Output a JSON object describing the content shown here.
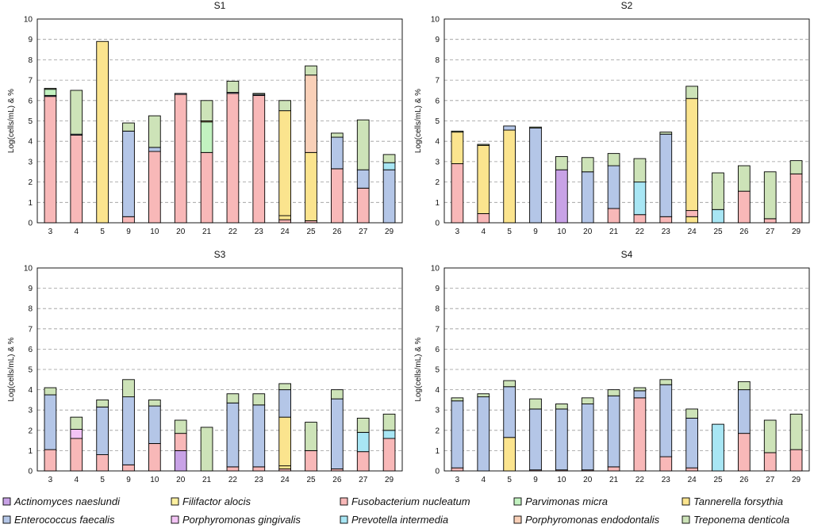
{
  "figure": {
    "legend": [
      {
        "key": "an",
        "name": "Actinomyces naeslundi",
        "color": "#c8a2e6"
      },
      {
        "key": "fa",
        "name": "Filifactor alocis",
        "color": "#fdf0a0"
      },
      {
        "key": "fn",
        "name": "Fusobacterium nucleatum",
        "color": "#f8b8b8"
      },
      {
        "key": "pm",
        "name": "Parvimonas micra",
        "color": "#c2f2c0"
      },
      {
        "key": "tf",
        "name": "Tannerella forsythia",
        "color": "#fbe48e"
      },
      {
        "key": "ef",
        "name": "Enterococcus faecalis",
        "color": "#b4c6e7"
      },
      {
        "key": "pg",
        "name": "Porphyromonas gingivalis",
        "color": "#f3c4f5"
      },
      {
        "key": "pi",
        "name": "Prevotella intermedia",
        "color": "#a8e6f4"
      },
      {
        "key": "pe",
        "name": "Porphyromonas endodontalis",
        "color": "#f9d0b8"
      },
      {
        "key": "td",
        "name": "Treponema denticola",
        "color": "#cde3b8"
      }
    ]
  },
  "chart_data": [
    {
      "type": "bar",
      "stacked": true,
      "title": "S1",
      "xlabel": "",
      "ylabel": "Log(cells/mL) & %",
      "ylim": [
        0,
        10
      ],
      "yticks": [
        "0",
        "1",
        "2",
        "3",
        "4",
        "5",
        "6",
        "7",
        "8",
        "9",
        "10"
      ],
      "categories": [
        "3",
        "4",
        "5",
        "9",
        "10",
        "20",
        "21",
        "22",
        "23",
        "24",
        "25",
        "26",
        "27",
        "29"
      ],
      "stacks": [
        [
          {
            "s": "fn",
            "v": 6.2
          },
          {
            "s": "ef",
            "v": 0.05
          },
          {
            "s": "pm",
            "v": 0.3
          },
          {
            "s": "td",
            "v": 0.05
          }
        ],
        [
          {
            "s": "fn",
            "v": 4.3
          },
          {
            "s": "ef",
            "v": 0.05
          },
          {
            "s": "td",
            "v": 2.15
          }
        ],
        [
          {
            "s": "tf",
            "v": 8.9
          }
        ],
        [
          {
            "s": "fn",
            "v": 0.3
          },
          {
            "s": "ef",
            "v": 4.2
          },
          {
            "s": "td",
            "v": 0.4
          }
        ],
        [
          {
            "s": "fn",
            "v": 3.5
          },
          {
            "s": "ef",
            "v": 0.2
          },
          {
            "s": "td",
            "v": 1.55
          }
        ],
        [
          {
            "s": "fn",
            "v": 6.3
          },
          {
            "s": "ef",
            "v": 0.05
          }
        ],
        [
          {
            "s": "fn",
            "v": 3.45
          },
          {
            "s": "pm",
            "v": 1.5
          },
          {
            "s": "tf",
            "v": 0.05
          },
          {
            "s": "td",
            "v": 1.0
          }
        ],
        [
          {
            "s": "fn",
            "v": 6.35
          },
          {
            "s": "ef",
            "v": 0.05
          },
          {
            "s": "td",
            "v": 0.55
          }
        ],
        [
          {
            "s": "fn",
            "v": 6.25
          },
          {
            "s": "ef",
            "v": 0.05
          },
          {
            "s": "td",
            "v": 0.05
          }
        ],
        [
          {
            "s": "fn",
            "v": 0.15
          },
          {
            "s": "tf",
            "v": 0.2
          },
          {
            "s": "tf",
            "v": 5.15
          },
          {
            "s": "td",
            "v": 0.5
          }
        ],
        [
          {
            "s": "fn",
            "v": 0.1
          },
          {
            "s": "tf",
            "v": 3.35
          },
          {
            "s": "pe",
            "v": 3.8
          },
          {
            "s": "td",
            "v": 0.45
          }
        ],
        [
          {
            "s": "fn",
            "v": 2.65
          },
          {
            "s": "ef",
            "v": 1.55
          },
          {
            "s": "td",
            "v": 0.2
          }
        ],
        [
          {
            "s": "fn",
            "v": 1.7
          },
          {
            "s": "ef",
            "v": 0.9
          },
          {
            "s": "td",
            "v": 2.45
          }
        ],
        [
          {
            "s": "ef",
            "v": 2.6
          },
          {
            "s": "pi",
            "v": 0.35
          },
          {
            "s": "td",
            "v": 0.4
          }
        ]
      ]
    },
    {
      "type": "bar",
      "stacked": true,
      "title": "S2",
      "xlabel": "",
      "ylabel": "Log(cells/mL) & %",
      "ylim": [
        0,
        10
      ],
      "yticks": [
        "0",
        "1",
        "2",
        "3",
        "4",
        "5",
        "6",
        "7",
        "8",
        "9",
        "10"
      ],
      "categories": [
        "3",
        "4",
        "5",
        "9",
        "10",
        "20",
        "21",
        "22",
        "23",
        "24",
        "25",
        "26",
        "27",
        "29"
      ],
      "stacks": [
        [
          {
            "s": "fn",
            "v": 2.9
          },
          {
            "s": "tf",
            "v": 1.55
          },
          {
            "s": "td",
            "v": 0.05
          }
        ],
        [
          {
            "s": "fn",
            "v": 0.45
          },
          {
            "s": "tf",
            "v": 3.35
          },
          {
            "s": "td",
            "v": 0.05
          }
        ],
        [
          {
            "s": "tf",
            "v": 4.55
          },
          {
            "s": "ef",
            "v": 0.2
          }
        ],
        [
          {
            "s": "ef",
            "v": 4.65
          },
          {
            "s": "td",
            "v": 0.05
          }
        ],
        [
          {
            "s": "an",
            "v": 2.6
          },
          {
            "s": "td",
            "v": 0.65
          }
        ],
        [
          {
            "s": "ef",
            "v": 2.5
          },
          {
            "s": "td",
            "v": 0.7
          }
        ],
        [
          {
            "s": "fn",
            "v": 0.7
          },
          {
            "s": "ef",
            "v": 2.1
          },
          {
            "s": "td",
            "v": 0.6
          }
        ],
        [
          {
            "s": "fn",
            "v": 0.4
          },
          {
            "s": "pi",
            "v": 1.6
          },
          {
            "s": "td",
            "v": 1.15
          }
        ],
        [
          {
            "s": "fn",
            "v": 0.3
          },
          {
            "s": "ef",
            "v": 4.05
          },
          {
            "s": "td",
            "v": 0.1
          }
        ],
        [
          {
            "s": "tf",
            "v": 0.3
          },
          {
            "s": "fn",
            "v": 0.3
          },
          {
            "s": "tf",
            "v": 5.5
          },
          {
            "s": "td",
            "v": 0.6
          }
        ],
        [
          {
            "s": "pi",
            "v": 0.65
          },
          {
            "s": "td",
            "v": 1.8
          }
        ],
        [
          {
            "s": "fn",
            "v": 1.55
          },
          {
            "s": "td",
            "v": 1.25
          }
        ],
        [
          {
            "s": "fn",
            "v": 0.2
          },
          {
            "s": "td",
            "v": 2.3
          }
        ],
        [
          {
            "s": "fn",
            "v": 2.4
          },
          {
            "s": "td",
            "v": 0.65
          }
        ]
      ]
    },
    {
      "type": "bar",
      "stacked": true,
      "title": "S3",
      "xlabel": "",
      "ylabel": "Log(cells/mL) & %",
      "ylim": [
        0,
        10
      ],
      "yticks": [
        "0",
        "1",
        "2",
        "3",
        "4",
        "5",
        "6",
        "7",
        "8",
        "9",
        "10"
      ],
      "categories": [
        "3",
        "4",
        "5",
        "9",
        "10",
        "20",
        "21",
        "22",
        "23",
        "24",
        "25",
        "26",
        "27",
        "29"
      ],
      "stacks": [
        [
          {
            "s": "fn",
            "v": 1.05
          },
          {
            "s": "ef",
            "v": 2.7
          },
          {
            "s": "td",
            "v": 0.35
          }
        ],
        [
          {
            "s": "fn",
            "v": 1.6
          },
          {
            "s": "pg",
            "v": 0.45
          },
          {
            "s": "td",
            "v": 0.6
          }
        ],
        [
          {
            "s": "fn",
            "v": 0.8
          },
          {
            "s": "ef",
            "v": 2.35
          },
          {
            "s": "td",
            "v": 0.35
          }
        ],
        [
          {
            "s": "fn",
            "v": 0.3
          },
          {
            "s": "ef",
            "v": 3.35
          },
          {
            "s": "td",
            "v": 0.85
          }
        ],
        [
          {
            "s": "fn",
            "v": 1.35
          },
          {
            "s": "ef",
            "v": 1.85
          },
          {
            "s": "td",
            "v": 0.3
          }
        ],
        [
          {
            "s": "an",
            "v": 1.0
          },
          {
            "s": "fn",
            "v": 0.85
          },
          {
            "s": "td",
            "v": 0.65
          }
        ],
        [
          {
            "s": "td",
            "v": 2.15
          }
        ],
        [
          {
            "s": "fn",
            "v": 0.2
          },
          {
            "s": "ef",
            "v": 3.15
          },
          {
            "s": "td",
            "v": 0.45
          }
        ],
        [
          {
            "s": "fn",
            "v": 0.2
          },
          {
            "s": "ef",
            "v": 3.05
          },
          {
            "s": "td",
            "v": 0.55
          }
        ],
        [
          {
            "s": "fn",
            "v": 0.1
          },
          {
            "s": "tf",
            "v": 0.15
          },
          {
            "s": "tf",
            "v": 2.4
          },
          {
            "s": "ef",
            "v": 1.35
          },
          {
            "s": "td",
            "v": 0.3
          }
        ],
        [
          {
            "s": "fn",
            "v": 1.0
          },
          {
            "s": "td",
            "v": 1.4
          }
        ],
        [
          {
            "s": "fn",
            "v": 0.1
          },
          {
            "s": "ef",
            "v": 3.45
          },
          {
            "s": "td",
            "v": 0.45
          }
        ],
        [
          {
            "s": "fn",
            "v": 0.95
          },
          {
            "s": "pi",
            "v": 0.95
          },
          {
            "s": "td",
            "v": 0.7
          }
        ],
        [
          {
            "s": "fn",
            "v": 1.6
          },
          {
            "s": "pi",
            "v": 0.4
          },
          {
            "s": "td",
            "v": 0.8
          }
        ]
      ]
    },
    {
      "type": "bar",
      "stacked": true,
      "title": "S4",
      "xlabel": "",
      "ylabel": "Log(cells/mL) & %",
      "ylim": [
        0,
        10
      ],
      "yticks": [
        "0",
        "1",
        "2",
        "3",
        "4",
        "5",
        "6",
        "7",
        "8",
        "9",
        "10"
      ],
      "categories": [
        "3",
        "4",
        "5",
        "9",
        "10",
        "20",
        "21",
        "22",
        "23",
        "24",
        "25",
        "26",
        "27",
        "29"
      ],
      "stacks": [
        [
          {
            "s": "fn",
            "v": 0.15
          },
          {
            "s": "ef",
            "v": 3.3
          },
          {
            "s": "td",
            "v": 0.15
          }
        ],
        [
          {
            "s": "ef",
            "v": 3.65
          },
          {
            "s": "td",
            "v": 0.15
          }
        ],
        [
          {
            "s": "tf",
            "v": 1.65
          },
          {
            "s": "ef",
            "v": 2.5
          },
          {
            "s": "td",
            "v": 0.3
          }
        ],
        [
          {
            "s": "fn",
            "v": 0.05
          },
          {
            "s": "ef",
            "v": 3.0
          },
          {
            "s": "td",
            "v": 0.5
          }
        ],
        [
          {
            "s": "fn",
            "v": 0.05
          },
          {
            "s": "ef",
            "v": 3.0
          },
          {
            "s": "td",
            "v": 0.25
          }
        ],
        [
          {
            "s": "fn",
            "v": 0.05
          },
          {
            "s": "ef",
            "v": 3.25
          },
          {
            "s": "td",
            "v": 0.3
          }
        ],
        [
          {
            "s": "fn",
            "v": 0.2
          },
          {
            "s": "ef",
            "v": 3.5
          },
          {
            "s": "td",
            "v": 0.3
          }
        ],
        [
          {
            "s": "fn",
            "v": 3.6
          },
          {
            "s": "ef",
            "v": 0.35
          },
          {
            "s": "td",
            "v": 0.15
          }
        ],
        [
          {
            "s": "fn",
            "v": 0.7
          },
          {
            "s": "ef",
            "v": 3.55
          },
          {
            "s": "td",
            "v": 0.25
          }
        ],
        [
          {
            "s": "fn",
            "v": 0.15
          },
          {
            "s": "ef",
            "v": 2.45
          },
          {
            "s": "td",
            "v": 0.45
          }
        ],
        [
          {
            "s": "pi",
            "v": 2.3
          }
        ],
        [
          {
            "s": "fn",
            "v": 1.85
          },
          {
            "s": "ef",
            "v": 2.15
          },
          {
            "s": "td",
            "v": 0.4
          }
        ],
        [
          {
            "s": "fn",
            "v": 0.9
          },
          {
            "s": "td",
            "v": 1.6
          }
        ],
        [
          {
            "s": "fn",
            "v": 1.05
          },
          {
            "s": "td",
            "v": 1.75
          }
        ]
      ]
    }
  ]
}
